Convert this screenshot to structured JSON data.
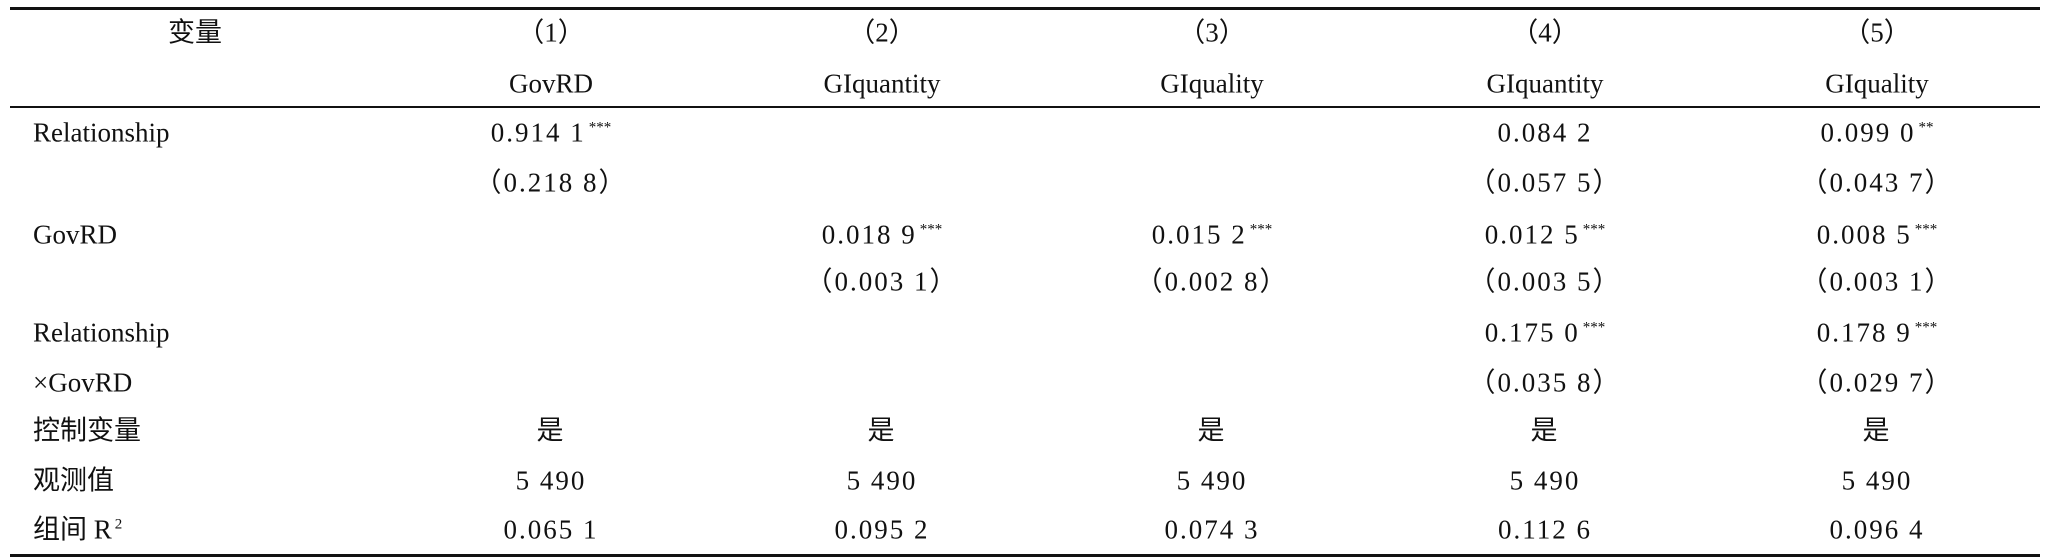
{
  "header": {
    "label": "变量",
    "columns": [
      {
        "number": "（1）",
        "variable": "GovRD"
      },
      {
        "number": "（2）",
        "variable": "GIquantity"
      },
      {
        "number": "（3）",
        "variable": "GIquality"
      },
      {
        "number": "（4）",
        "variable": "GIquantity"
      },
      {
        "number": "（5）",
        "variable": "GIquality"
      }
    ]
  },
  "table": {
    "rows": [
      {
        "label": "Relationship",
        "cells": [
          {
            "value": "0.914 1",
            "stars": "***"
          },
          null,
          null,
          {
            "value": "0.084 2"
          },
          {
            "value": "0.099 0",
            "stars": "**"
          }
        ]
      },
      {
        "label": null,
        "cells": [
          {
            "value": "（0.218 8）"
          },
          null,
          null,
          {
            "value": "（0.057 5）"
          },
          {
            "value": "（0.043 7）"
          }
        ]
      },
      {
        "label": "GovRD",
        "cells": [
          null,
          {
            "value": "0.018 9",
            "stars": "***"
          },
          {
            "value": "0.015 2",
            "stars": "***"
          },
          {
            "value": "0.012 5",
            "stars": "***"
          },
          {
            "value": "0.008 5",
            "stars": "***"
          }
        ]
      },
      {
        "label": null,
        "cells": [
          null,
          {
            "value": "（0.003 1）"
          },
          {
            "value": "（0.002 8）"
          },
          {
            "value": "（0.003 5）"
          },
          {
            "value": "（0.003 1）"
          }
        ]
      },
      {
        "label": "Relationship",
        "cells": [
          null,
          null,
          null,
          {
            "value": "0.175 0",
            "stars": "***"
          },
          {
            "value": "0.178 9",
            "stars": "***"
          }
        ]
      },
      {
        "label": "×GovRD",
        "cells": [
          null,
          null,
          null,
          {
            "value": "（0.035 8）"
          },
          {
            "value": "（0.029 7）"
          }
        ]
      },
      {
        "label": "控制变量",
        "cells": [
          {
            "value": "是"
          },
          {
            "value": "是"
          },
          {
            "value": "是"
          },
          {
            "value": "是"
          },
          {
            "value": "是"
          }
        ]
      },
      {
        "label": "观测值",
        "cells": [
          {
            "value": "5 490"
          },
          {
            "value": "5 490"
          },
          {
            "value": "5 490"
          },
          {
            "value": "5 490"
          },
          {
            "value": "5 490"
          }
        ]
      },
      {
        "label": "组间 R",
        "label_sup": "2",
        "cells": [
          {
            "value": "0.065 1"
          },
          {
            "value": "0.095 2"
          },
          {
            "value": "0.074 3"
          },
          {
            "value": "0.112 6"
          },
          {
            "value": "0.096 4"
          }
        ]
      }
    ]
  }
}
